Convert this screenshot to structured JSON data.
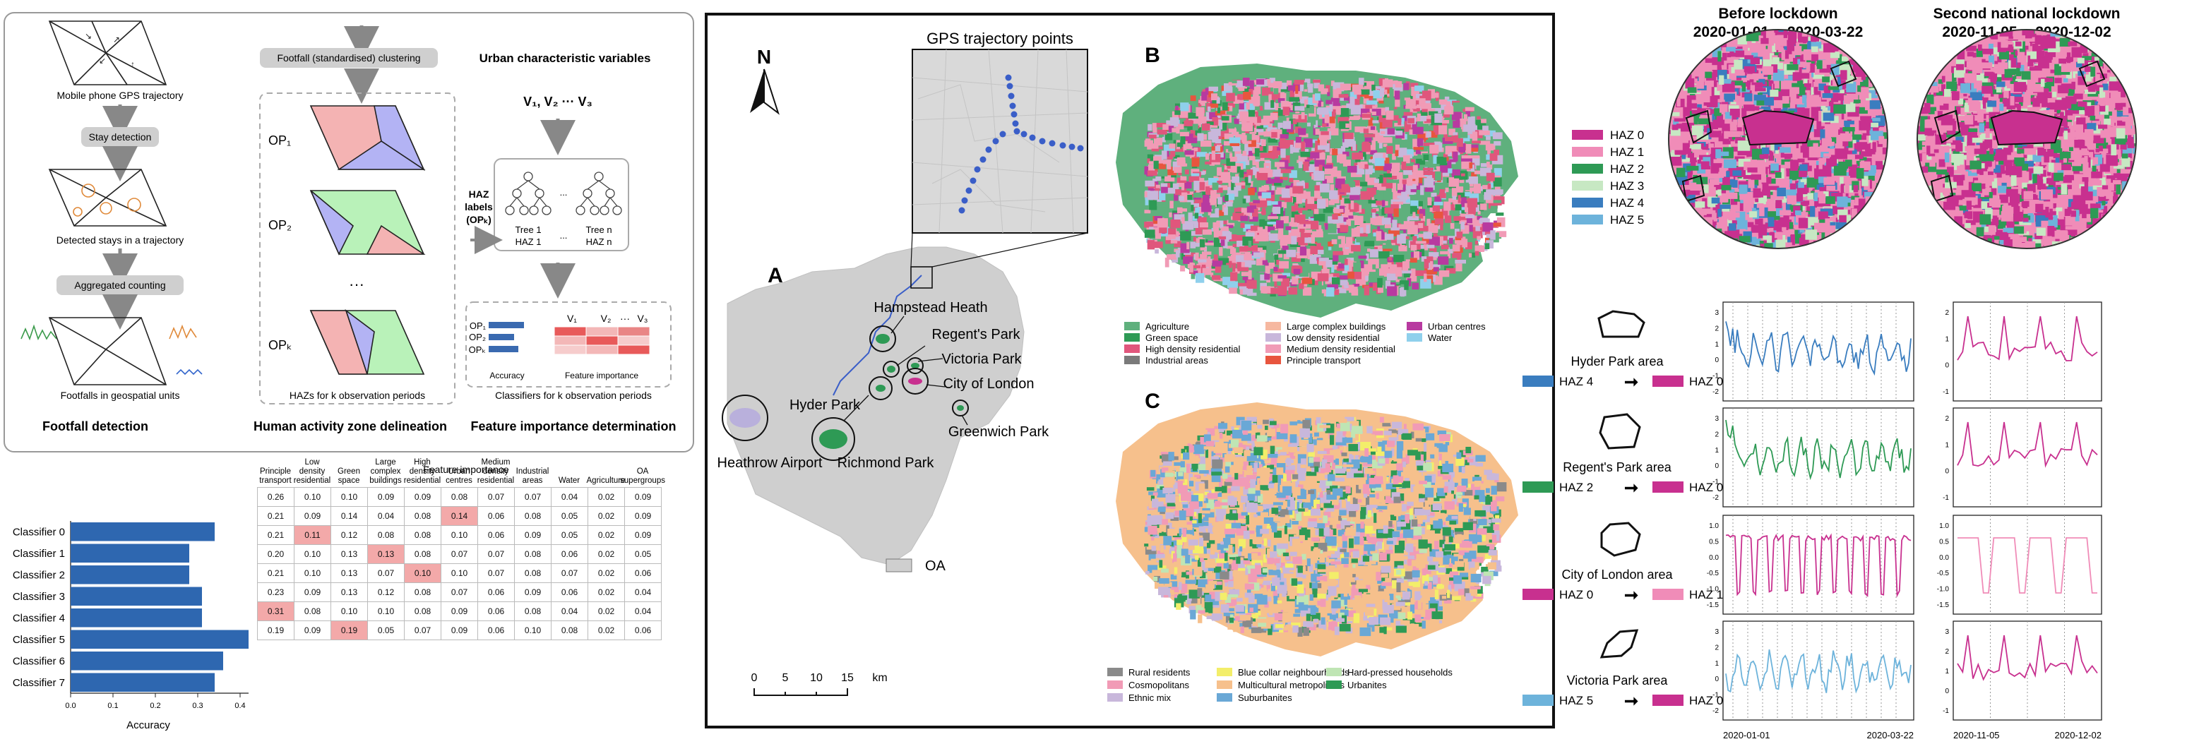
{
  "panel_left": {
    "col1": {
      "title": "Footfall detection",
      "captions": [
        "Mobile phone GPS trajectory",
        "Detected stays in a trajectory",
        "Footfalls in geospatial units"
      ],
      "steps": [
        "Stay detection",
        "Aggregated counting"
      ]
    },
    "col2": {
      "title": "Human activity zone delineation",
      "step": "Footfall (standardised) clustering",
      "op_labels": [
        "OP₁",
        "OP₂",
        "OPₖ"
      ],
      "dots": "···",
      "caption": "HAZs for k observation periods"
    },
    "col3": {
      "title": "Feature importance determination",
      "heading": "Urban characteristic variables",
      "vars": "V₁,  V₂ ··· V₃",
      "haz_label": [
        "HAZ",
        "labels",
        "(OPₖ)"
      ],
      "trees": [
        "Tree 1",
        "HAZ 1",
        "...",
        "Tree n",
        "HAZ n"
      ],
      "mini_ops": [
        "OP₁",
        "OP₂",
        "OPₖ"
      ],
      "mini_vars": [
        "V₁",
        "V₂",
        "···",
        "V₃"
      ],
      "accuracy": "Accuracy",
      "feature_importance": "Feature importance",
      "caption": "Classifiers for k observation periods"
    }
  },
  "bottom_left": {
    "table_title": "Feature importance",
    "columns": [
      "Principle transport",
      "Low density residential",
      "Green space",
      "Large complex buildings",
      "High density residential",
      "Urban centres",
      "Medium density residential",
      "Industrial areas",
      "Water",
      "Agriculture",
      "OA supergroups"
    ],
    "rows": [
      {
        "name": "Classifier 0",
        "accuracy": 0.34,
        "values": [
          "0.26",
          "0.10",
          "0.10",
          "0.09",
          "0.09",
          "0.08",
          "0.07",
          "0.07",
          "0.04",
          "0.02",
          "0.09"
        ]
      },
      {
        "name": "Classifier 1",
        "accuracy": 0.28,
        "values": [
          "0.21",
          "0.09",
          "0.14",
          "0.04",
          "0.08",
          "0.14",
          "0.06",
          "0.08",
          "0.05",
          "0.02",
          "0.09"
        ]
      },
      {
        "name": "Classifier 2",
        "accuracy": 0.28,
        "values": [
          "0.21",
          "0.11",
          "0.12",
          "0.08",
          "0.08",
          "0.10",
          "0.06",
          "0.09",
          "0.05",
          "0.02",
          "0.09"
        ]
      },
      {
        "name": "Classifier 3",
        "accuracy": 0.31,
        "values": [
          "0.20",
          "0.10",
          "0.13",
          "0.13",
          "0.08",
          "0.07",
          "0.07",
          "0.08",
          "0.06",
          "0.02",
          "0.05"
        ]
      },
      {
        "name": "Classifier 4",
        "accuracy": 0.31,
        "values": [
          "0.21",
          "0.10",
          "0.13",
          "0.07",
          "0.10",
          "0.10",
          "0.07",
          "0.08",
          "0.07",
          "0.02",
          "0.06"
        ]
      },
      {
        "name": "Classifier 5",
        "accuracy": 0.42,
        "values": [
          "0.23",
          "0.09",
          "0.13",
          "0.12",
          "0.08",
          "0.07",
          "0.06",
          "0.09",
          "0.06",
          "0.02",
          "0.04"
        ]
      },
      {
        "name": "Classifier 6",
        "accuracy": 0.36,
        "values": [
          "0.31",
          "0.08",
          "0.10",
          "0.10",
          "0.08",
          "0.09",
          "0.06",
          "0.08",
          "0.04",
          "0.02",
          "0.04"
        ]
      },
      {
        "name": "Classifier 7",
        "accuracy": 0.34,
        "values": [
          "0.19",
          "0.09",
          "0.19",
          "0.05",
          "0.07",
          "0.09",
          "0.06",
          "0.10",
          "0.08",
          "0.02",
          "0.06"
        ]
      }
    ],
    "highlights": [
      [
        6,
        0
      ],
      [
        1,
        5
      ],
      [
        2,
        1
      ],
      [
        3,
        3
      ],
      [
        4,
        4
      ],
      [
        7,
        2
      ]
    ],
    "xlabel": "Accuracy",
    "xticks": [
      "0.0",
      "0.1",
      "0.2",
      "0.3",
      "0.4"
    ]
  },
  "panel_middle": {
    "label_a": "A",
    "label_b": "B",
    "label_c": "C",
    "north": "N",
    "gps_title": "GPS trajectory points",
    "places": [
      "Hampstead Heath",
      "Regent's Park",
      "Victoria Park",
      "City of London",
      "Greenwich Park",
      "Hyder Park",
      "Richmond Park",
      "Heathrow Airport"
    ],
    "oa_label": "OA",
    "scale": [
      "0",
      "5",
      "10",
      "15",
      "km"
    ],
    "legend_b": [
      {
        "label": "Agriculture",
        "color": "#5fb07d"
      },
      {
        "label": "Green space",
        "color": "#2e9a55"
      },
      {
        "label": "High density residential",
        "color": "#e0567c"
      },
      {
        "label": "Industrial areas",
        "color": "#7a7a7a"
      },
      {
        "label": "Large complex buildings",
        "color": "#f6b8a0"
      },
      {
        "label": "Low density residential",
        "color": "#c8b7db"
      },
      {
        "label": "Medium density residential",
        "color": "#f19bb6"
      },
      {
        "label": "Principle transport",
        "color": "#e8553e"
      },
      {
        "label": "Urban centres",
        "color": "#b83aa0"
      },
      {
        "label": "Water",
        "color": "#8fd0ec"
      }
    ],
    "legend_c": [
      {
        "label": "Rural residents",
        "color": "#8a8a8a"
      },
      {
        "label": "Cosmopolitans",
        "color": "#f19bb6"
      },
      {
        "label": "Ethnic mix",
        "color": "#c8b7db"
      },
      {
        "label": "Blue collar neighbourhoods",
        "color": "#f3ee6a"
      },
      {
        "label": "Multicultural metropolitans",
        "color": "#f6c08c"
      },
      {
        "label": "Suburbanites",
        "color": "#6aa8d6"
      },
      {
        "label": "Hard-pressed households",
        "color": "#bfe5b4"
      },
      {
        "label": "Urbanites",
        "color": "#2e9a55"
      }
    ]
  },
  "panel_right": {
    "before": {
      "title": "Before lockdown",
      "dates": "2020-01-01 -- 2020-03-22"
    },
    "second": {
      "title": "Second national lockdown",
      "dates": "2020-11-05 -- 2020-12-02"
    },
    "haz_legend": [
      {
        "label": "HAZ 0",
        "color": "#c8308f"
      },
      {
        "label": "HAZ 1",
        "color": "#f08cb8"
      },
      {
        "label": "HAZ 2",
        "color": "#2e9a55"
      },
      {
        "label": "HAZ 3",
        "color": "#c7e8c3"
      },
      {
        "label": "HAZ 4",
        "color": "#3a7dbf"
      },
      {
        "label": "HAZ 5",
        "color": "#6db3db"
      }
    ],
    "areas": [
      {
        "name": "Hyder Park area",
        "from": "HAZ 4",
        "to": "HAZ 0",
        "from_color": "#3a7dbf",
        "to_color": "#c8308f",
        "yticks": [
          "3",
          "2",
          "1",
          "0",
          "-1",
          "-2"
        ],
        "yticks2": [
          "2",
          "1",
          "0",
          "-1"
        ]
      },
      {
        "name": "Regent's Park area",
        "from": "HAZ 2",
        "to": "HAZ 0",
        "from_color": "#2e9a55",
        "to_color": "#c8308f",
        "yticks": [
          "3",
          "2",
          "1",
          "0",
          "-1",
          "-2"
        ],
        "yticks2": [
          "2",
          "1",
          "0",
          "-1"
        ]
      },
      {
        "name": "City of London area",
        "from": "HAZ 0",
        "to": "HAZ 1",
        "from_color": "#c8308f",
        "to_color": "#f08cb8",
        "yticks": [
          "1.0",
          "0.5",
          "0.0",
          "-0.5",
          "-1.0",
          "-1.5"
        ],
        "yticks2": [
          "1.0",
          "0.5",
          "0.0",
          "-0.5",
          "-1.0",
          "-1.5"
        ]
      },
      {
        "name": "Victoria Park area",
        "from": "HAZ 5",
        "to": "HAZ 0",
        "from_color": "#6db3db",
        "to_color": "#c8308f",
        "yticks": [
          "3",
          "2",
          "1",
          "0",
          "-1",
          "-2"
        ],
        "yticks2": [
          "3",
          "2",
          "1",
          "0",
          "-1"
        ]
      }
    ],
    "x_start": "2020-01-01",
    "x_end": "2020-03-22",
    "x2_start": "2020-11-05",
    "x2_end": "2020-12-02"
  }
}
